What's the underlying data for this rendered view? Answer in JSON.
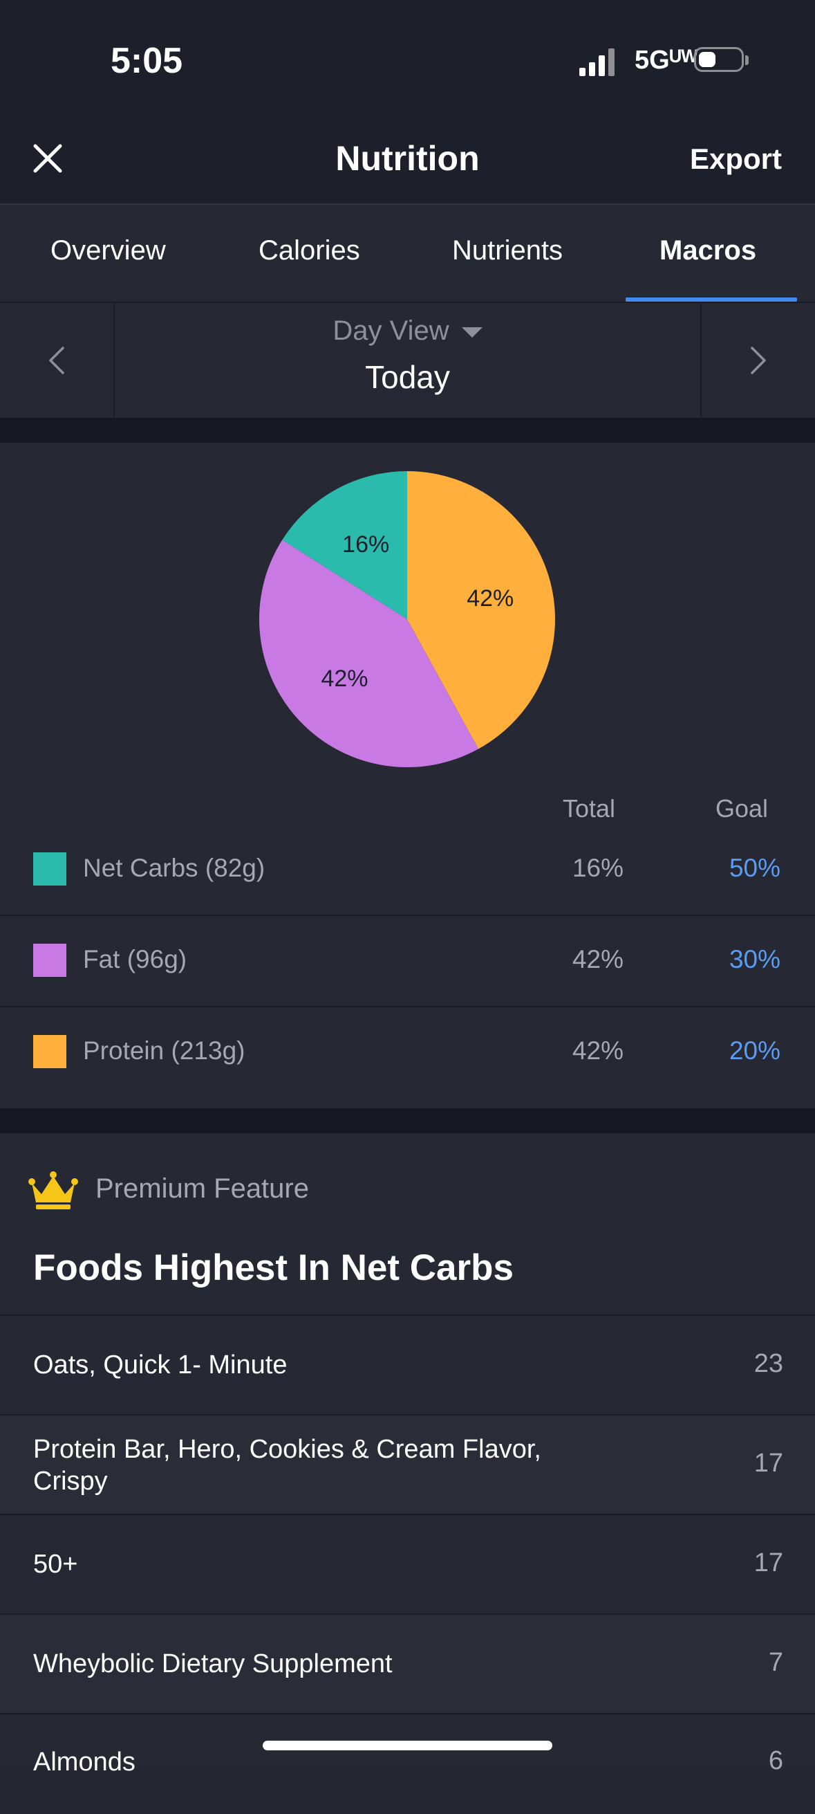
{
  "status": {
    "time": "5:05",
    "network": "5Gᵁᵂ"
  },
  "nav": {
    "title": "Nutrition",
    "export_label": "Export"
  },
  "tabs": [
    {
      "label": "Overview"
    },
    {
      "label": "Calories"
    },
    {
      "label": "Nutrients"
    },
    {
      "label": "Macros",
      "active": true
    }
  ],
  "date": {
    "view_label": "Day View",
    "value": "Today"
  },
  "chart_data": {
    "type": "pie",
    "slices": [
      {
        "label": "Protein (213g)",
        "value": 42,
        "display": "42%",
        "color": "#ffb03c"
      },
      {
        "label": "Fat (96g)",
        "value": 42,
        "display": "42%",
        "color": "#c879e3"
      },
      {
        "label": "Net Carbs (82g)",
        "value": 16,
        "display": "16%",
        "color": "#2bbbad"
      }
    ]
  },
  "macros": {
    "header_total": "Total",
    "header_goal": "Goal",
    "rows": [
      {
        "label": "Net Carbs (82g)",
        "total": "16%",
        "goal": "50%",
        "color": "#2bbbad"
      },
      {
        "label": "Fat (96g)",
        "total": "42%",
        "goal": "30%",
        "color": "#c879e3"
      },
      {
        "label": "Protein (213g)",
        "total": "42%",
        "goal": "20%",
        "color": "#ffb03c"
      }
    ]
  },
  "foods": {
    "premium_label": "Premium Feature",
    "title": "Foods Highest In Net Carbs",
    "items": [
      {
        "name": "Oats, Quick 1- Minute",
        "value": "23"
      },
      {
        "name": "Protein Bar, Hero, Cookies & Cream Flavor, Crispy",
        "value": "17"
      },
      {
        "name": "50+",
        "value": "17"
      },
      {
        "name": "Wheybolic Dietary Supplement",
        "value": "7"
      },
      {
        "name": "Almonds",
        "value": "6"
      }
    ]
  },
  "colors": {
    "accent": "#3f8bf1",
    "goal_text": "#5b9cf0",
    "crown": "#f5c518"
  }
}
